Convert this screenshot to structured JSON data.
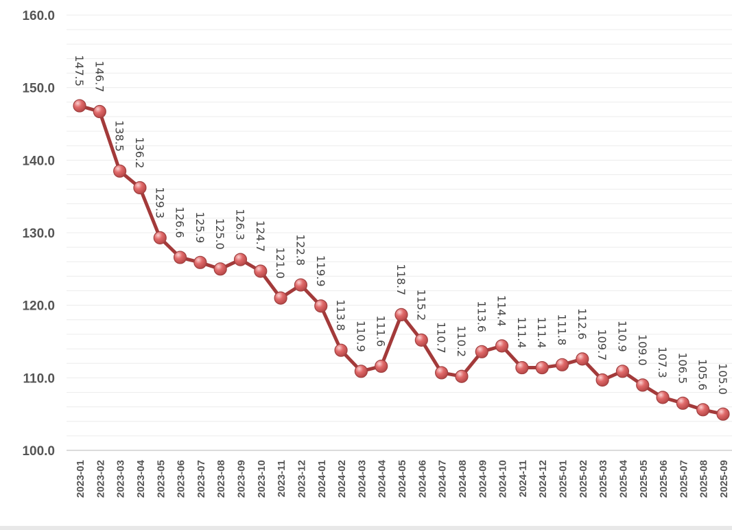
{
  "chart_data": {
    "type": "line",
    "title": "",
    "xlabel": "",
    "ylabel": "",
    "ylim": [
      100,
      160
    ],
    "yticks": [
      "100.0",
      "110.0",
      "120.0",
      "130.0",
      "140.0",
      "150.0",
      "160.0"
    ],
    "grid": true,
    "legend": "none",
    "categories": [
      "2023-01",
      "2023-02",
      "2023-03",
      "2023-04",
      "2023-05",
      "2023-06",
      "2023-07",
      "2023-08",
      "2023-09",
      "2023-10",
      "2023-11",
      "2023-12",
      "2024-01",
      "2024-02",
      "2024-03",
      "2024-04",
      "2024-05",
      "2024-06",
      "2024-07",
      "2024-08",
      "2024-09",
      "2024-10",
      "2024-11",
      "2024-12",
      "2025-01",
      "2025-02",
      "2025-03",
      "2025-04",
      "2025-05",
      "2025-06",
      "2025-07",
      "2025-08",
      "2025-09"
    ],
    "values": [
      147.5,
      146.7,
      138.5,
      136.2,
      129.3,
      126.6,
      125.9,
      125.0,
      126.3,
      124.7,
      121.0,
      122.8,
      119.9,
      113.8,
      110.9,
      111.6,
      118.7,
      115.2,
      110.7,
      110.2,
      113.6,
      114.4,
      111.4,
      111.4,
      111.8,
      112.6,
      109.7,
      110.9,
      109.0,
      107.3,
      106.5,
      105.6,
      105.0
    ],
    "labels": [
      "147.5",
      "146.7",
      "138.5",
      "136.2",
      "129.3",
      "126.6",
      "125.9",
      "125.0",
      "126.3",
      "124.7",
      "121.0",
      "122.8",
      "119.9",
      "113.8",
      "110.9",
      "111.6",
      "118.7",
      "115.2",
      "110.7",
      "110.2",
      "113.6",
      "114.4",
      "111.4",
      "111.4",
      "111.8",
      "112.6",
      "109.7",
      "110.9",
      "109.0",
      "107.3",
      "106.5",
      "105.6",
      "105.0"
    ],
    "colors": {
      "line": "#a33a3a",
      "marker": "#e06a6a",
      "grid": "#ececec",
      "axis": "#cfcfcf"
    }
  }
}
